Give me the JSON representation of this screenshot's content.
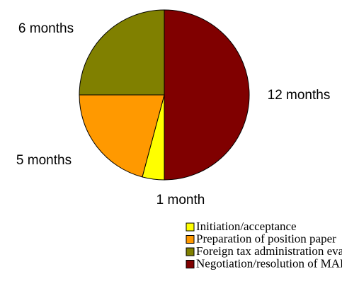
{
  "chart_data": {
    "type": "pie",
    "categories": [
      "Initiation/acceptance",
      "Preparation of position paper",
      "Foreign tax administration evaluation",
      "Negotiation/resolution of MAP"
    ],
    "values": [
      1,
      5,
      6,
      12
    ],
    "value_labels": [
      "1 month",
      "5 months",
      "6 months",
      "12 months"
    ],
    "colors": [
      "#ffff00",
      "#ff9900",
      "#808000",
      "#800000"
    ],
    "legend": "bottom"
  }
}
